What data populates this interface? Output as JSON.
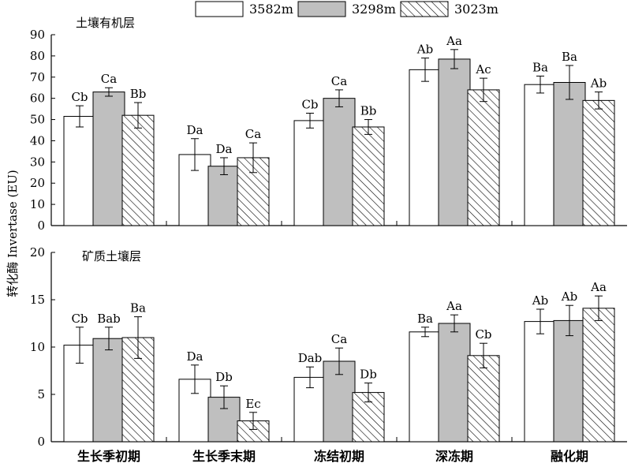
{
  "colors": {
    "series_3582": "#ffffff",
    "series_3298": "#bfbfbf",
    "series_3023_hatch": "#000000",
    "axis": "#000000"
  },
  "legend": {
    "position": "top",
    "entries": [
      {
        "label": "3582m",
        "style": "white"
      },
      {
        "label": "3298m",
        "style": "gray"
      },
      {
        "label": "3023m",
        "style": "hatched"
      }
    ]
  },
  "ylabel": "转化酶 Invertase (EU)",
  "chart_data": [
    {
      "type": "bar",
      "title": "土壤有机层",
      "ylim": [
        0,
        90
      ],
      "yticks": [
        0,
        10,
        20,
        30,
        40,
        50,
        60,
        70,
        80,
        90
      ],
      "categories": [
        "生长季初期",
        "生长季末期",
        "冻结初期",
        "深冻期",
        "融化期"
      ],
      "series": [
        {
          "name": "3582m",
          "values": [
            51.5,
            33.5,
            49.5,
            73.5,
            66.5
          ],
          "errors": [
            5,
            7.5,
            3.5,
            5.5,
            4
          ],
          "labels": [
            "Cb",
            "Da",
            "Cb",
            "Ab",
            "Ba"
          ]
        },
        {
          "name": "3298m",
          "values": [
            63,
            28,
            60,
            78.5,
            67.5
          ],
          "errors": [
            2,
            4,
            4,
            4.5,
            8
          ],
          "labels": [
            "Ca",
            "Da",
            "Ca",
            "Aa",
            "Ba"
          ]
        },
        {
          "name": "3023m",
          "values": [
            52,
            32,
            46.5,
            64,
            59
          ],
          "errors": [
            6,
            7,
            3.5,
            5.5,
            4
          ],
          "labels": [
            "Bb",
            "Ca",
            "Bb",
            "Ac",
            "Ab"
          ]
        }
      ]
    },
    {
      "type": "bar",
      "title": "矿质土壤层",
      "ylim": [
        0,
        20
      ],
      "yticks": [
        0,
        5,
        10,
        15,
        20
      ],
      "categories": [
        "生长季初期",
        "生长季末期",
        "冻结初期",
        "深冻期",
        "融化期"
      ],
      "series": [
        {
          "name": "3582m",
          "values": [
            10.2,
            6.6,
            6.8,
            11.6,
            12.7
          ],
          "errors": [
            1.9,
            1.5,
            1.1,
            0.5,
            1.3
          ],
          "labels": [
            "Cb",
            "Da",
            "Dab",
            "Ba",
            "Ab"
          ]
        },
        {
          "name": "3298m",
          "values": [
            10.9,
            4.7,
            8.5,
            12.5,
            12.8
          ],
          "errors": [
            1.2,
            1.2,
            1.4,
            0.9,
            1.6
          ],
          "labels": [
            "Bab",
            "Db",
            "Ca",
            "Aa",
            "Ab"
          ]
        },
        {
          "name": "3023m",
          "values": [
            11.0,
            2.2,
            5.2,
            9.1,
            14.1
          ],
          "errors": [
            2.2,
            0.9,
            1.0,
            1.3,
            1.3
          ],
          "labels": [
            "Ba",
            "Ec",
            "Db",
            "Cb",
            "Aa"
          ]
        }
      ]
    }
  ]
}
